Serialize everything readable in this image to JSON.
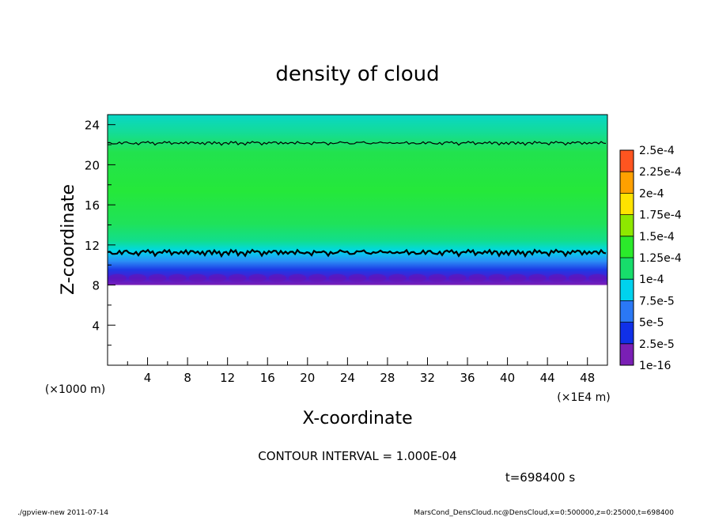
{
  "chart_data": {
    "type": "heatmap",
    "title": "density of cloud",
    "xlabel": "X-coordinate",
    "ylabel": "Z-coordinate",
    "x_unit": "(×1E4 m)",
    "y_unit": "(×1000 m)",
    "xlim": [
      0,
      50
    ],
    "ylim": [
      0,
      25
    ],
    "x_ticks": [
      4,
      8,
      12,
      16,
      20,
      24,
      28,
      32,
      36,
      40,
      44,
      48
    ],
    "y_ticks": [
      4,
      8,
      12,
      16,
      20,
      24
    ],
    "colorbar": {
      "levels": [
        "1e-16",
        "2.5e-5",
        "5e-5",
        "7.5e-5",
        "1e-4",
        "1.25e-4",
        "1.5e-4",
        "1.75e-4",
        "2e-4",
        "2.25e-4",
        "2.5e-4"
      ],
      "colors": [
        "#7a1fb5",
        "#1030e8",
        "#2a78f5",
        "#00d2ee",
        "#17dd6b",
        "#2bea2b",
        "#8ee800",
        "#ffe300",
        "#ffa000",
        "#ff5520",
        "#ff9a9a"
      ]
    },
    "cloud_layer": {
      "z_bottom": 8,
      "z_top": 25
    },
    "contour_interval": "CONTOUR INTERVAL = 1.000E-04",
    "contour_levels_z": [
      11.3,
      22.2
    ],
    "time": "t=698400 s"
  },
  "footer": {
    "left": "./gpview-new   2011-07-14",
    "right": "MarsCond_DensCloud.nc@DensCloud,x=0:500000,z=0:25000,t=698400"
  }
}
